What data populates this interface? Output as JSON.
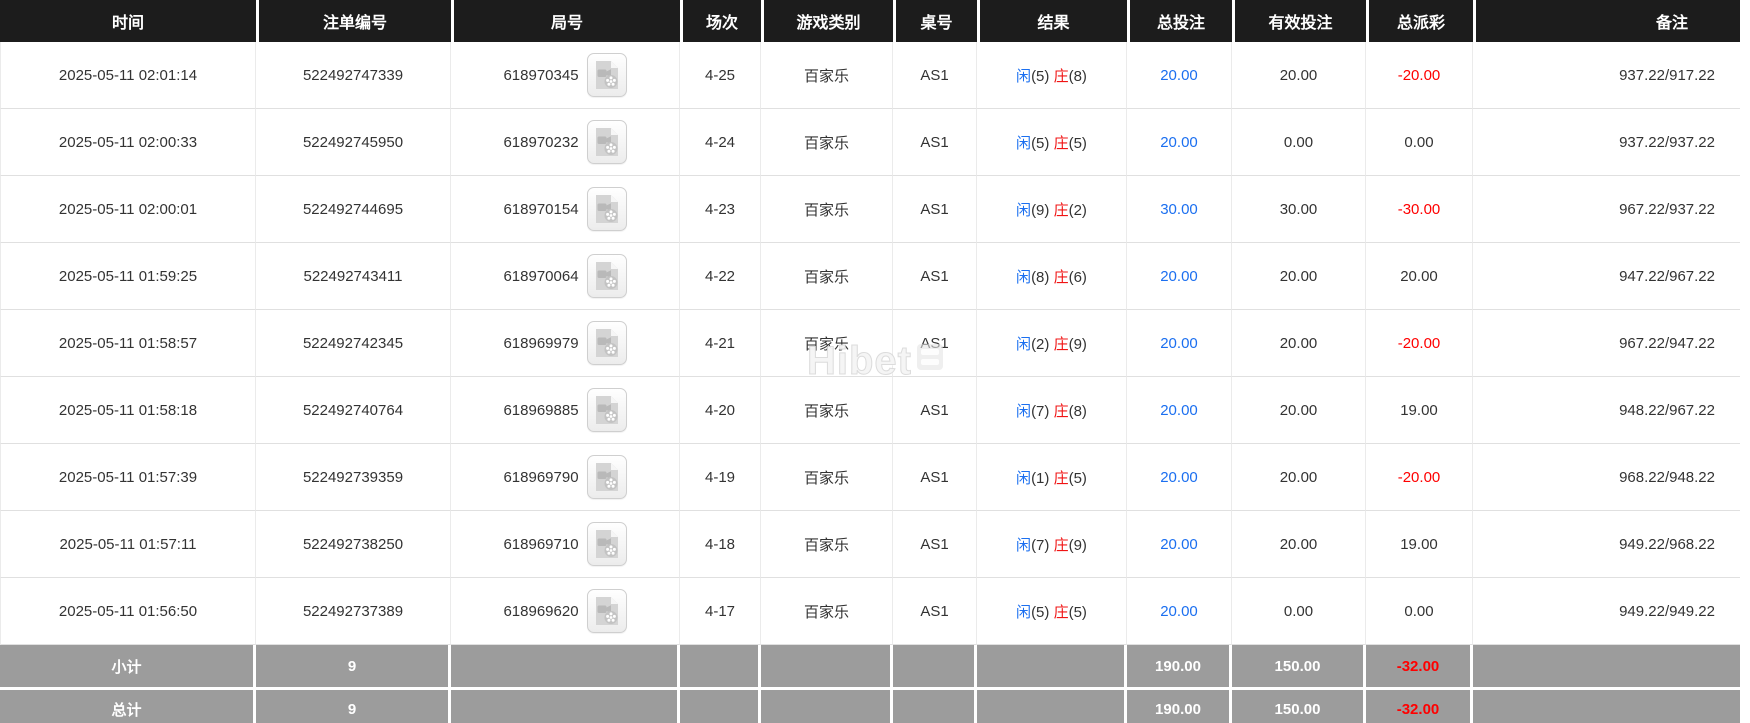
{
  "colors": {
    "header_bg": "#1c1c1c",
    "summary_bg": "#9c9c9c",
    "blue_accent": "#1b6ff0",
    "red_accent": "#ff0000"
  },
  "icons": {
    "video_replay": "video-file-icon"
  },
  "watermark": {
    "text": "Hibet"
  },
  "table": {
    "columns": [
      {
        "key": "time",
        "label": "时间"
      },
      {
        "key": "bet_id",
        "label": "注单编号"
      },
      {
        "key": "round_id",
        "label": "局号"
      },
      {
        "key": "session",
        "label": "场次"
      },
      {
        "key": "game_type",
        "label": "游戏类别"
      },
      {
        "key": "table_no",
        "label": "桌号"
      },
      {
        "key": "result",
        "label": "结果"
      },
      {
        "key": "total_bet",
        "label": "总投注"
      },
      {
        "key": "valid_bet",
        "label": "有效投注"
      },
      {
        "key": "total_payout",
        "label": "总派彩"
      },
      {
        "key": "remark",
        "label": "备注"
      }
    ],
    "rows": [
      {
        "time": "2025-05-11 02:01:14",
        "bet_id": "522492747339",
        "round_id": "618970345",
        "session": "4-25",
        "game_type": "百家乐",
        "table_no": "AS1",
        "result": {
          "player_label": "闲",
          "player_score": "(5)",
          "banker_label": "庄",
          "banker_score": "(8)"
        },
        "total_bet": "20.00",
        "valid_bet": "20.00",
        "total_payout": "-20.00",
        "remark": "937.22/917.22"
      },
      {
        "time": "2025-05-11 02:00:33",
        "bet_id": "522492745950",
        "round_id": "618970232",
        "session": "4-24",
        "game_type": "百家乐",
        "table_no": "AS1",
        "result": {
          "player_label": "闲",
          "player_score": "(5)",
          "banker_label": "庄",
          "banker_score": "(5)"
        },
        "total_bet": "20.00",
        "valid_bet": "0.00",
        "total_payout": "0.00",
        "remark": "937.22/937.22"
      },
      {
        "time": "2025-05-11 02:00:01",
        "bet_id": "522492744695",
        "round_id": "618970154",
        "session": "4-23",
        "game_type": "百家乐",
        "table_no": "AS1",
        "result": {
          "player_label": "闲",
          "player_score": "(9)",
          "banker_label": "庄",
          "banker_score": "(2)"
        },
        "total_bet": "30.00",
        "valid_bet": "30.00",
        "total_payout": "-30.00",
        "remark": "967.22/937.22"
      },
      {
        "time": "2025-05-11 01:59:25",
        "bet_id": "522492743411",
        "round_id": "618970064",
        "session": "4-22",
        "game_type": "百家乐",
        "table_no": "AS1",
        "result": {
          "player_label": "闲",
          "player_score": "(8)",
          "banker_label": "庄",
          "banker_score": "(6)"
        },
        "total_bet": "20.00",
        "valid_bet": "20.00",
        "total_payout": "20.00",
        "remark": "947.22/967.22"
      },
      {
        "time": "2025-05-11 01:58:57",
        "bet_id": "522492742345",
        "round_id": "618969979",
        "session": "4-21",
        "game_type": "百家乐",
        "table_no": "AS1",
        "result": {
          "player_label": "闲",
          "player_score": "(2)",
          "banker_label": "庄",
          "banker_score": "(9)"
        },
        "total_bet": "20.00",
        "valid_bet": "20.00",
        "total_payout": "-20.00",
        "remark": "967.22/947.22"
      },
      {
        "time": "2025-05-11 01:58:18",
        "bet_id": "522492740764",
        "round_id": "618969885",
        "session": "4-20",
        "game_type": "百家乐",
        "table_no": "AS1",
        "result": {
          "player_label": "闲",
          "player_score": "(7)",
          "banker_label": "庄",
          "banker_score": "(8)"
        },
        "total_bet": "20.00",
        "valid_bet": "20.00",
        "total_payout": "19.00",
        "remark": "948.22/967.22"
      },
      {
        "time": "2025-05-11 01:57:39",
        "bet_id": "522492739359",
        "round_id": "618969790",
        "session": "4-19",
        "game_type": "百家乐",
        "table_no": "AS1",
        "result": {
          "player_label": "闲",
          "player_score": "(1)",
          "banker_label": "庄",
          "banker_score": "(5)"
        },
        "total_bet": "20.00",
        "valid_bet": "20.00",
        "total_payout": "-20.00",
        "remark": "968.22/948.22"
      },
      {
        "time": "2025-05-11 01:57:11",
        "bet_id": "522492738250",
        "round_id": "618969710",
        "session": "4-18",
        "game_type": "百家乐",
        "table_no": "AS1",
        "result": {
          "player_label": "闲",
          "player_score": "(7)",
          "banker_label": "庄",
          "banker_score": "(9)"
        },
        "total_bet": "20.00",
        "valid_bet": "20.00",
        "total_payout": "19.00",
        "remark": "949.22/968.22"
      },
      {
        "time": "2025-05-11 01:56:50",
        "bet_id": "522492737389",
        "round_id": "618969620",
        "session": "4-17",
        "game_type": "百家乐",
        "table_no": "AS1",
        "result": {
          "player_label": "闲",
          "player_score": "(5)",
          "banker_label": "庄",
          "banker_score": "(5)"
        },
        "total_bet": "20.00",
        "valid_bet": "0.00",
        "total_payout": "0.00",
        "remark": "949.22/949.22"
      }
    ],
    "subtotal": {
      "label": "小计",
      "count": "9",
      "total_bet": "190.00",
      "valid_bet": "150.00",
      "total_payout": "-32.00",
      "remark": ""
    },
    "total": {
      "label": "总计",
      "count": "9",
      "total_bet": "190.00",
      "valid_bet": "150.00",
      "total_payout": "-32.00",
      "remark": ""
    }
  }
}
